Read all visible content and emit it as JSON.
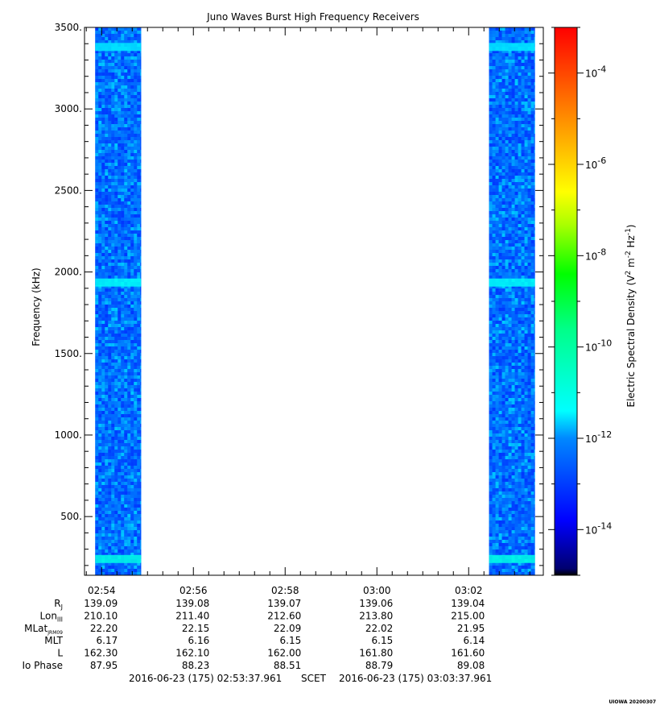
{
  "chart_data": {
    "type": "heatmap",
    "title": "Juno Waves Burst High Frequency Receivers",
    "ylabel": "Frequency (kHz)",
    "colorbar_label": "Electric Spectral Density (V",
    "colorbar_label_sup1": "2",
    "colorbar_label_mid": " m",
    "colorbar_label_sup2": "-2",
    "colorbar_label_mid2": " Hz",
    "colorbar_label_sup3": "-1",
    "colorbar_label_end": ")",
    "ylim": [
      140,
      3500
    ],
    "y_ticks": [
      500,
      1000,
      1500,
      2000,
      2500,
      3000,
      3500
    ],
    "y_tick_labels": [
      "500.",
      "1000.",
      "1500.",
      "2000.",
      "2500.",
      "3000.",
      "3500."
    ],
    "x_range": [
      "02:53:37.961",
      "03:03:37.961"
    ],
    "x_ticks_min": [
      22.37,
      142.37,
      262.37,
      382.37,
      502.37
    ],
    "x_tick_labels": [
      "02:54",
      "02:56",
      "02:58",
      "03:00",
      "03:02"
    ],
    "colorbar_log_range": [
      -15,
      -3
    ],
    "colorbar_ticks": [
      -14,
      -12,
      -10,
      -8,
      -6,
      -4
    ],
    "colorbar_tick_base": "10",
    "colorbar_tick_exps": [
      "-14",
      "-12",
      "-10",
      "-8",
      "-6",
      "-4"
    ],
    "data_segments": [
      {
        "start": "02:53:52",
        "end": "02:54:52"
      },
      {
        "start": "03:02:27",
        "end": "03:03:27"
      }
    ],
    "background_log_density": -12.3,
    "emission_bands_khz": [
      {
        "freq": 240,
        "log_density": -11.0
      },
      {
        "freq": 1935,
        "log_density": -11.3
      },
      {
        "freq": 3380,
        "log_density": -11.5
      }
    ],
    "ephemeris": {
      "rows": [
        {
          "label": "R",
          "sub": "J",
          "values": [
            "139.09",
            "139.08",
            "139.07",
            "139.06",
            "139.04"
          ]
        },
        {
          "label": "Lon",
          "sub": "III",
          "values": [
            "210.10",
            "211.40",
            "212.60",
            "213.80",
            "215.00"
          ]
        },
        {
          "label": "MLat",
          "sub": "JRM09",
          "values": [
            "22.20",
            "22.15",
            "22.09",
            "22.02",
            "21.95"
          ]
        },
        {
          "label": "MLT",
          "sub": "",
          "values": [
            "6.17",
            "6.16",
            "6.15",
            "6.15",
            "6.14"
          ]
        },
        {
          "label": "L",
          "sub": "",
          "values": [
            "162.30",
            "162.10",
            "162.00",
            "161.80",
            "161.60"
          ]
        },
        {
          "label": "Io Phase",
          "sub": "",
          "values": [
            "87.95",
            "88.23",
            "88.51",
            "88.79",
            "89.08"
          ]
        }
      ]
    },
    "footer": {
      "start": "2016-06-23 (175) 02:53:37.961",
      "mid": "SCET",
      "end": "2016-06-23 (175) 03:03:37.961"
    },
    "stamp": "UIOWA 20200307"
  }
}
